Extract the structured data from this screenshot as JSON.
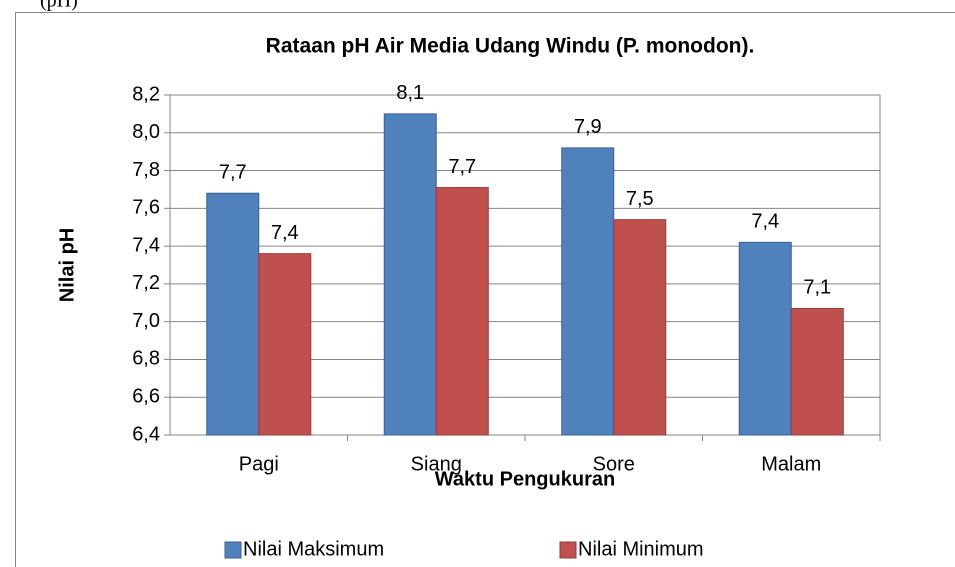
{
  "page_header": "(pH)",
  "chart_data": {
    "type": "bar",
    "title": "Rataan pH Air Media Udang Windu (P. monodon).",
    "x_label": "Waktu Pengukuran",
    "y_label": "Nilai pH",
    "categories": [
      "Pagi",
      "Siang",
      "Sore",
      "Malam"
    ],
    "series": [
      {
        "name": "Nilai Maksimum",
        "color": "#4f81bd",
        "values": [
          7.68,
          8.1,
          7.92,
          7.42
        ],
        "value_labels": [
          "7,7",
          "8,1",
          "7,9",
          "7,4"
        ]
      },
      {
        "name": "Nilai Minimum",
        "color": "#c0504d",
        "values": [
          7.36,
          7.71,
          7.54,
          7.07
        ],
        "value_labels": [
          "7,4",
          "7,7",
          "7,5",
          "7,1"
        ]
      }
    ],
    "ylim": [
      6.4,
      8.2
    ],
    "yticks": [
      {
        "value": 6.4,
        "label": "6,4"
      },
      {
        "value": 6.6,
        "label": "6,6"
      },
      {
        "value": 6.8,
        "label": "6,8"
      },
      {
        "value": 7.0,
        "label": "7,0"
      },
      {
        "value": 7.2,
        "label": "7,2"
      },
      {
        "value": 7.4,
        "label": "7,4"
      },
      {
        "value": 7.6,
        "label": "7,6"
      },
      {
        "value": 7.8,
        "label": "7,8"
      },
      {
        "value": 8.0,
        "label": "8,0"
      },
      {
        "value": 8.2,
        "label": "8,2"
      }
    ],
    "grid": true,
    "legend": "bottom"
  }
}
